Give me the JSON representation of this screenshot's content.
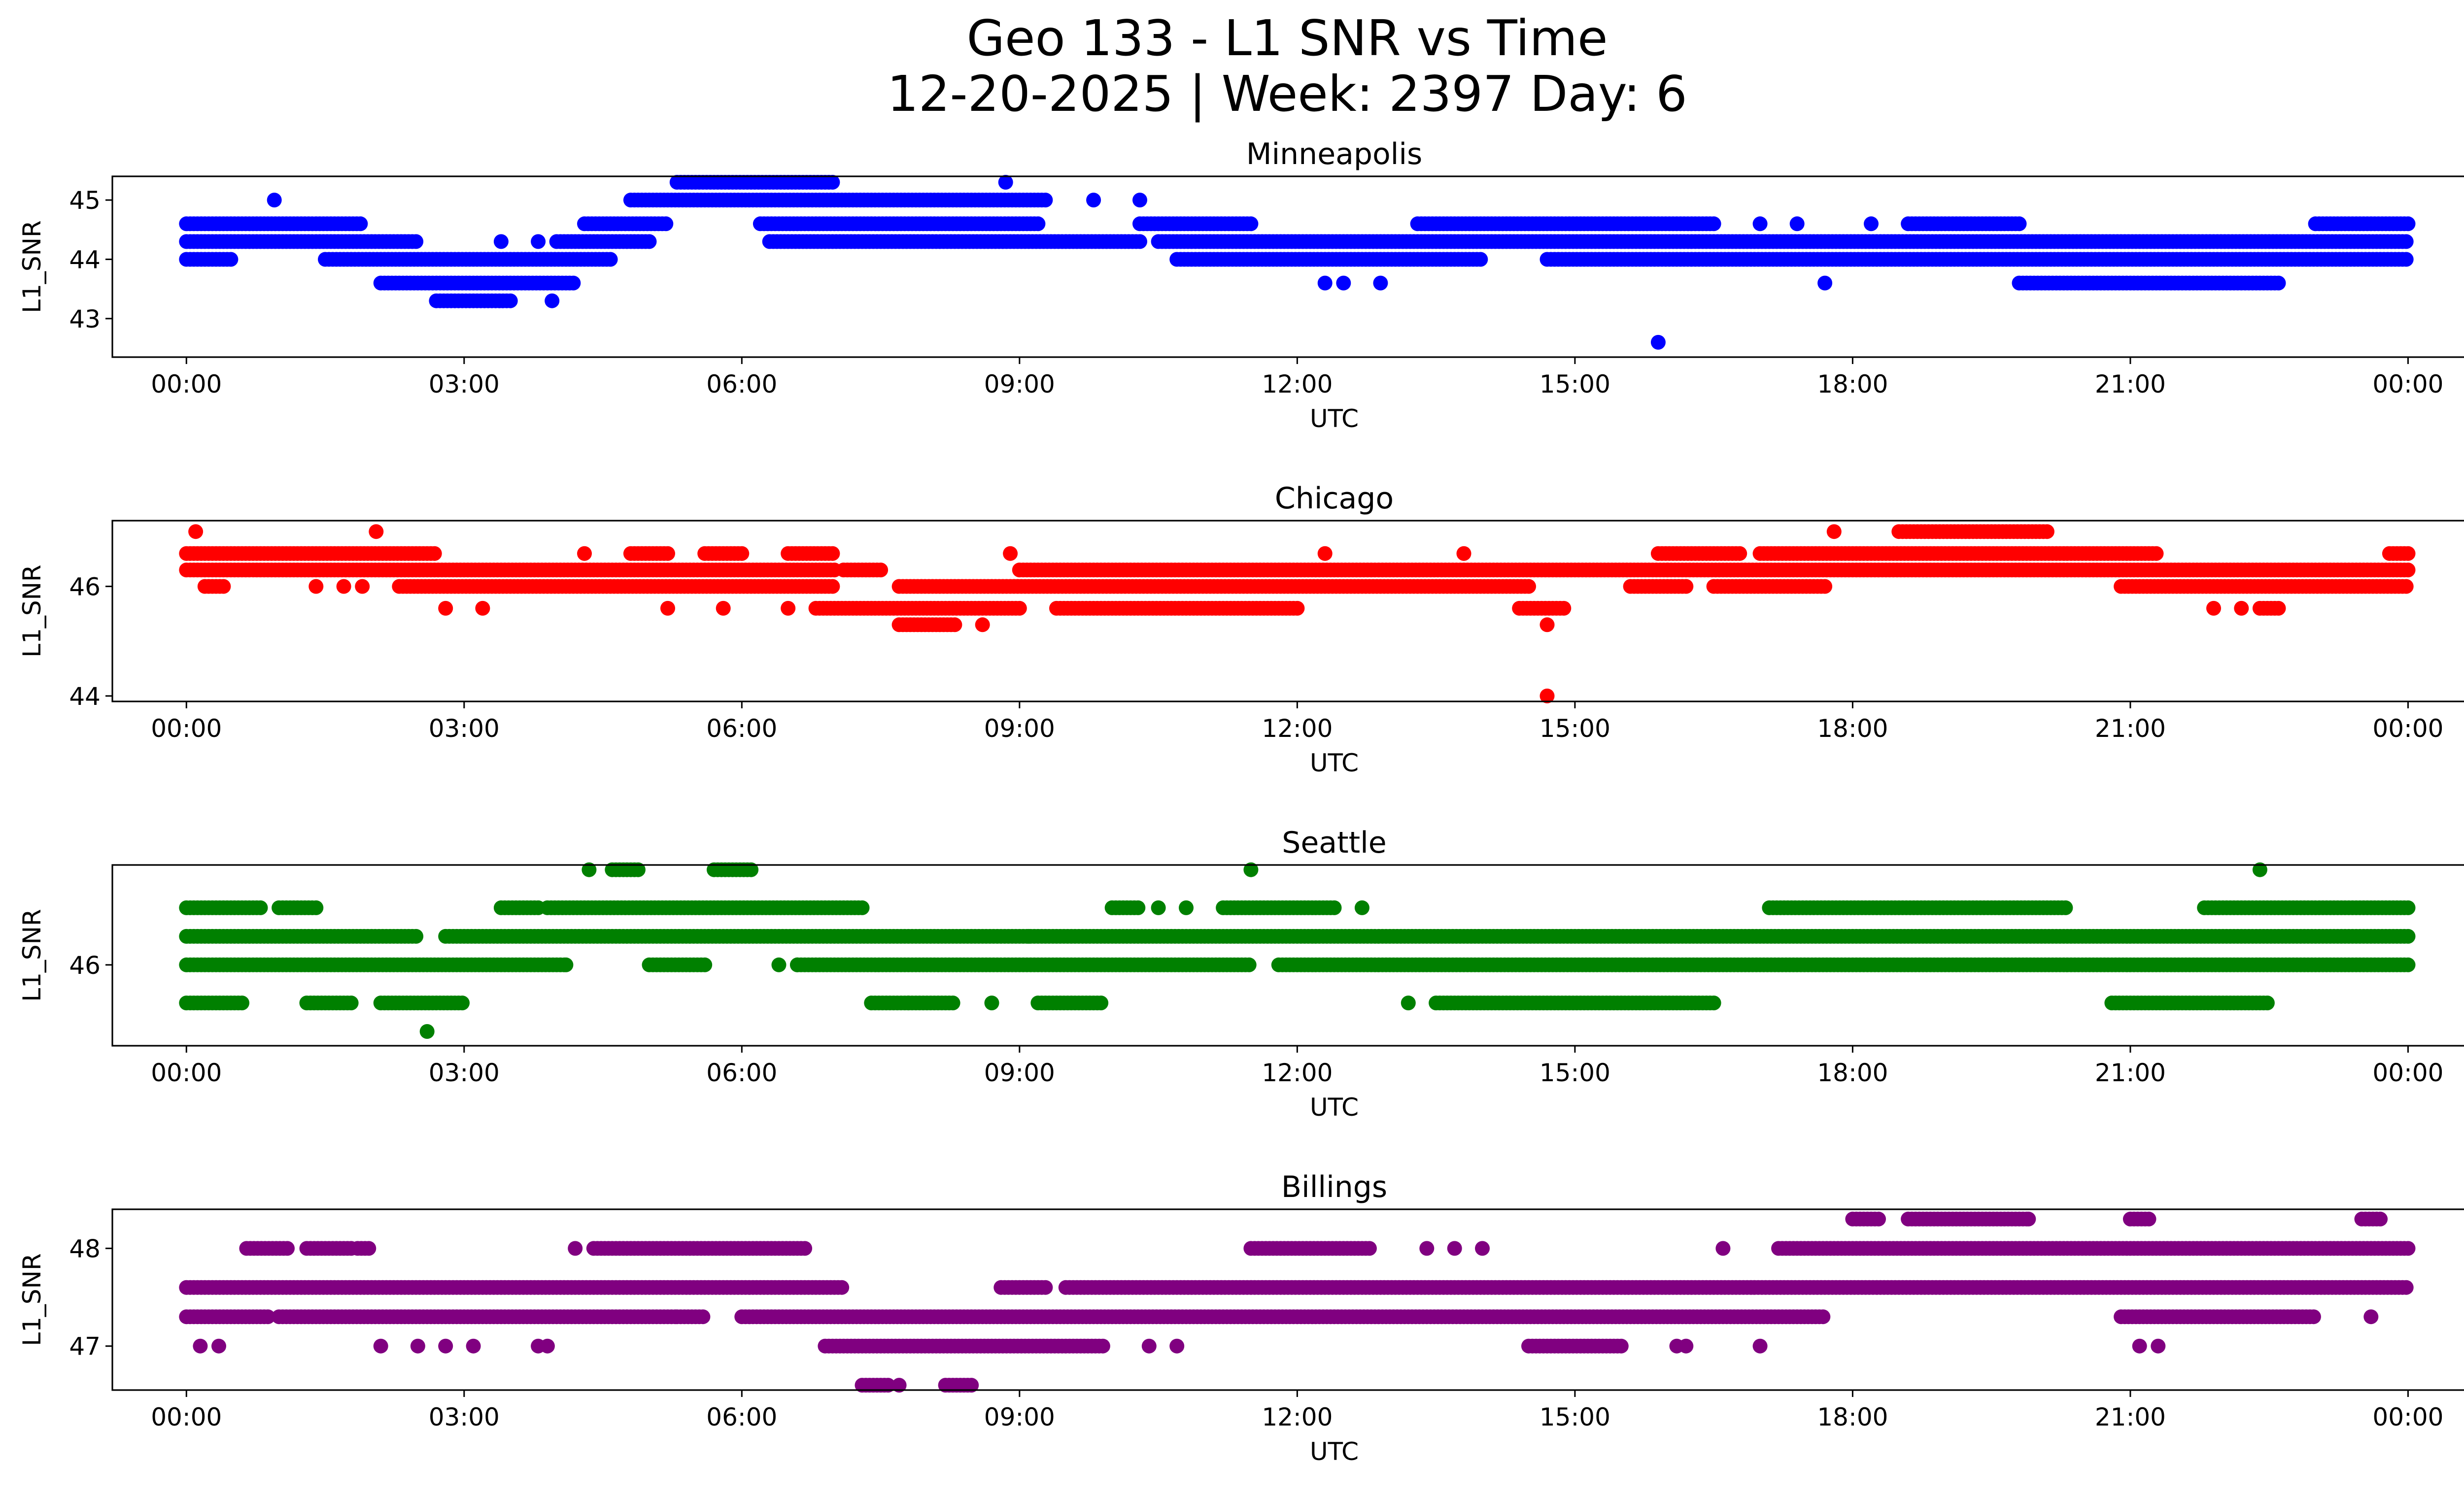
{
  "chart_data": {
    "type": "scatter",
    "title": "Geo 133 - L1 SNR vs Time",
    "subtitle": "12-20-2025 | Week: 2397 Day: 6",
    "xlabel": "UTC",
    "ylabel": "L1_SNR",
    "x_unit": "hours UTC",
    "xlim": [
      -0.8,
      25.6
    ],
    "xticks": [
      0,
      3,
      6,
      9,
      12,
      15,
      18,
      21,
      24
    ],
    "xtick_labels": [
      "00:00",
      "03:00",
      "06:00",
      "09:00",
      "12:00",
      "15:00",
      "18:00",
      "21:00",
      "00:00"
    ],
    "grid": false,
    "panels": [
      {
        "name": "Minneapolis",
        "color": "#0000ff",
        "ylim": [
          42.35,
          45.4
        ],
        "yticks": [
          43,
          44,
          45
        ],
        "series": [
          {
            "y": 44.6,
            "ranges": [
              [
                0.0,
                1.9
              ],
              [
                4.3,
                5.2
              ],
              [
                6.2,
                9.2
              ],
              [
                10.3,
                11.5
              ],
              [
                13.3,
                16.5
              ],
              [
                18.6,
                19.8
              ],
              [
                23.0,
                24.0
              ]
            ]
          },
          {
            "y": 44.3,
            "ranges": [
              [
                0.0,
                2.5
              ],
              [
                4.0,
                5.0
              ],
              [
                6.3,
                10.3
              ],
              [
                10.5,
                24.0
              ]
            ]
          },
          {
            "y": 44.0,
            "ranges": [
              [
                0.0,
                0.5
              ],
              [
                1.5,
                4.6
              ],
              [
                10.7,
                14.0
              ],
              [
                14.7,
                24.0
              ]
            ]
          },
          {
            "y": 43.6,
            "ranges": [
              [
                2.1,
                4.2
              ],
              [
                19.8,
                22.6
              ]
            ]
          },
          {
            "y": 43.3,
            "ranges": [
              [
                2.7,
                3.5
              ]
            ]
          },
          {
            "y": 45.0,
            "ranges": [
              [
                4.8,
                9.3
              ]
            ]
          },
          {
            "y": 45.3,
            "ranges": [
              [
                5.3,
                7.0
              ]
            ]
          }
        ],
        "points": [
          [
            0.95,
            45.0
          ],
          [
            8.85,
            45.3
          ],
          [
            9.8,
            45.0
          ],
          [
            10.3,
            45.0
          ],
          [
            12.3,
            43.6
          ],
          [
            12.5,
            43.6
          ],
          [
            12.9,
            43.6
          ],
          [
            17.7,
            43.6
          ],
          [
            15.9,
            42.6
          ],
          [
            3.95,
            43.3
          ],
          [
            3.4,
            44.3
          ],
          [
            3.8,
            44.3
          ],
          [
            17.0,
            44.6
          ],
          [
            17.4,
            44.6
          ],
          [
            18.2,
            44.6
          ]
        ]
      },
      {
        "name": "Chicago",
        "color": "#ff0000",
        "ylim": [
          43.9,
          47.2
        ],
        "yticks": [
          44,
          46
        ],
        "series": [
          {
            "y": 47.0,
            "ranges": [
              [
                18.5,
                20.1
              ]
            ]
          },
          {
            "y": 46.6,
            "ranges": [
              [
                0.0,
                2.7
              ],
              [
                4.8,
                5.2
              ],
              [
                5.6,
                6.0
              ],
              [
                6.5,
                7.0
              ],
              [
                15.9,
                16.8
              ],
              [
                17.0,
                21.3
              ],
              [
                23.8,
                24.0
              ]
            ]
          },
          {
            "y": 46.3,
            "ranges": [
              [
                0.0,
                7.0
              ],
              [
                7.1,
                7.5
              ],
              [
                9.0,
                16.0
              ],
              [
                16.0,
                24.0
              ]
            ]
          },
          {
            "y": 46.0,
            "ranges": [
              [
                0.2,
                0.4
              ],
              [
                2.3,
                7.0
              ],
              [
                7.7,
                14.5
              ],
              [
                15.6,
                16.2
              ],
              [
                16.5,
                17.7
              ],
              [
                20.9,
                24.0
              ]
            ]
          },
          {
            "y": 45.6,
            "ranges": [
              [
                6.8,
                9.0
              ],
              [
                9.4,
                12.0
              ],
              [
                14.4,
                14.9
              ],
              [
                22.4,
                22.6
              ]
            ]
          },
          {
            "y": 45.3,
            "ranges": [
              [
                7.7,
                8.3
              ]
            ]
          }
        ],
        "points": [
          [
            0.1,
            47.0
          ],
          [
            2.05,
            47.0
          ],
          [
            17.8,
            47.0
          ],
          [
            14.7,
            45.3
          ],
          [
            14.7,
            44.0
          ],
          [
            8.6,
            45.3
          ],
          [
            1.4,
            46.0
          ],
          [
            1.7,
            46.0
          ],
          [
            1.9,
            46.0
          ],
          [
            2.8,
            45.6
          ],
          [
            3.2,
            45.6
          ],
          [
            5.2,
            45.6
          ],
          [
            5.8,
            45.6
          ],
          [
            6.5,
            45.6
          ],
          [
            4.3,
            46.6
          ],
          [
            8.9,
            46.6
          ],
          [
            12.3,
            46.6
          ],
          [
            13.8,
            46.6
          ],
          [
            21.9,
            45.6
          ],
          [
            22.2,
            45.6
          ]
        ]
      },
      {
        "name": "Seattle",
        "color": "#008000",
        "ylim": [
          45.15,
          47.05
        ],
        "yticks": [
          46
        ],
        "series": [
          {
            "y": 46.6,
            "ranges": [
              [
                0.0,
                0.8
              ],
              [
                1.0,
                1.4
              ],
              [
                3.4,
                3.8
              ],
              [
                3.9,
                7.3
              ],
              [
                10.0,
                10.3
              ],
              [
                11.2,
                12.4
              ],
              [
                17.1,
                20.3
              ],
              [
                21.8,
                24.0
              ]
            ]
          },
          {
            "y": 46.3,
            "ranges": [
              [
                0.0,
                2.5
              ],
              [
                2.8,
                24.0
              ]
            ]
          },
          {
            "y": 46.0,
            "ranges": [
              [
                0.0,
                4.1
              ],
              [
                5.0,
                5.6
              ],
              [
                6.6,
                11.5
              ],
              [
                11.8,
                24.0
              ]
            ]
          },
          {
            "y": 45.6,
            "ranges": [
              [
                0.0,
                0.6
              ],
              [
                1.3,
                1.8
              ],
              [
                2.1,
                3.0
              ],
              [
                7.4,
                8.3
              ],
              [
                9.2,
                9.9
              ],
              [
                13.5,
                16.5
              ],
              [
                20.8,
                22.5
              ]
            ]
          },
          {
            "y": 47.0,
            "ranges": [
              [
                4.6,
                4.9
              ],
              [
                5.7,
                6.1
              ]
            ]
          }
        ],
        "points": [
          [
            4.35,
            47.0
          ],
          [
            11.5,
            47.0
          ],
          [
            22.4,
            47.0
          ],
          [
            2.6,
            45.3
          ],
          [
            7.8,
            45.6
          ],
          [
            8.7,
            45.6
          ],
          [
            13.2,
            45.6
          ],
          [
            10.5,
            46.6
          ],
          [
            10.8,
            46.6
          ],
          [
            12.7,
            46.6
          ],
          [
            6.4,
            46.0
          ],
          [
            6.6,
            46.0
          ],
          [
            9.1,
            46.3
          ],
          [
            4.1,
            46.0
          ]
        ]
      },
      {
        "name": "Billings",
        "color": "#800080",
        "ylim": [
          46.55,
          48.4
        ],
        "yticks": [
          47,
          48
        ],
        "series": [
          {
            "y": 48.3,
            "ranges": [
              [
                18.0,
                18.3
              ],
              [
                18.6,
                19.9
              ],
              [
                21.0,
                21.2
              ],
              [
                23.5,
                23.7
              ]
            ]
          },
          {
            "y": 48.0,
            "ranges": [
              [
                0.65,
                1.1
              ],
              [
                1.3,
                1.8
              ],
              [
                1.85,
                2.0
              ],
              [
                4.4,
                6.7
              ],
              [
                11.5,
                12.8
              ],
              [
                17.2,
                24.0
              ]
            ]
          },
          {
            "y": 47.6,
            "ranges": [
              [
                0.0,
                7.1
              ],
              [
                8.8,
                9.3
              ],
              [
                9.5,
                24.0
              ]
            ]
          },
          {
            "y": 47.3,
            "ranges": [
              [
                0.0,
                0.9
              ],
              [
                1.0,
                5.3
              ],
              [
                5.3,
                5.6
              ],
              [
                6.0,
                17.7
              ],
              [
                20.9,
                23.0
              ]
            ]
          },
          {
            "y": 47.0,
            "ranges": [
              [
                6.9,
                9.9
              ],
              [
                14.5,
                15.5
              ]
            ]
          },
          {
            "y": 46.6,
            "ranges": [
              [
                7.3,
                7.6
              ],
              [
                8.2,
                8.5
              ]
            ]
          }
        ],
        "points": [
          [
            0.15,
            47.0
          ],
          [
            0.35,
            47.0
          ],
          [
            2.1,
            47.0
          ],
          [
            2.5,
            47.0
          ],
          [
            2.8,
            47.0
          ],
          [
            3.1,
            47.0
          ],
          [
            3.8,
            47.0
          ],
          [
            3.9,
            47.0
          ],
          [
            10.4,
            47.0
          ],
          [
            10.7,
            47.0
          ],
          [
            16.1,
            47.0
          ],
          [
            16.2,
            47.0
          ],
          [
            17.0,
            47.0
          ],
          [
            21.1,
            47.0
          ],
          [
            21.3,
            47.0
          ],
          [
            7.7,
            46.6
          ],
          [
            4.2,
            48.0
          ],
          [
            13.4,
            48.0
          ],
          [
            13.7,
            48.0
          ],
          [
            14.0,
            48.0
          ],
          [
            16.6,
            48.0
          ],
          [
            23.6,
            47.3
          ],
          [
            19.9,
            48.3
          ]
        ]
      }
    ]
  }
}
